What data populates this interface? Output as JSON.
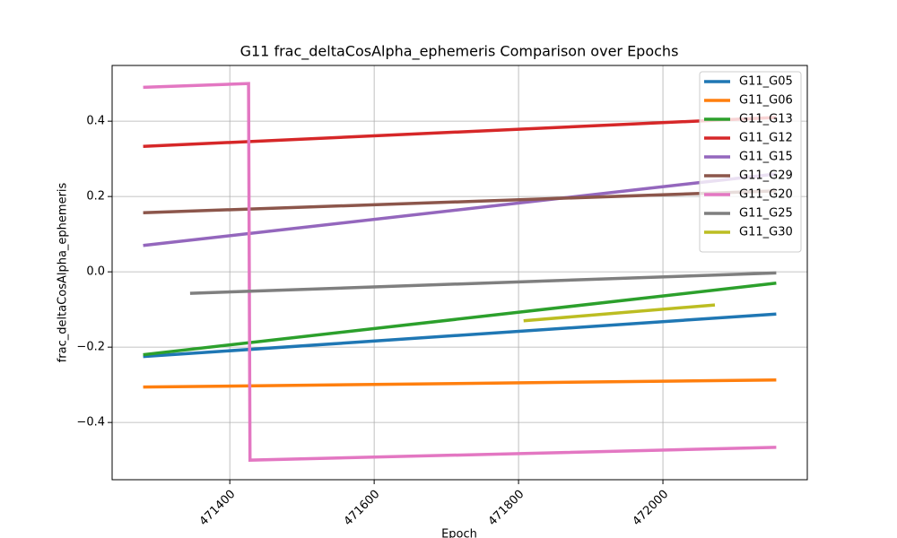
{
  "chart_data": {
    "type": "line",
    "title": "G11 frac_deltaCosAlpha_ephemeris Comparison over Epochs",
    "x_label": "Epoch",
    "y_label": "frac_deltaCosAlpha_ephemeris",
    "xlim": [
      471237,
      472200
    ],
    "ylim": [
      -0.552,
      0.548
    ],
    "xticks": [
      471400,
      471600,
      471800,
      472000
    ],
    "yticks": [
      {
        "value": -0.4,
        "label": "−0.4"
      },
      {
        "value": -0.2,
        "label": "−0.2"
      },
      {
        "value": 0,
        "label": "0.0"
      },
      0.2,
      0.4
    ],
    "grid": true,
    "legend": "upper right",
    "series": [
      {
        "name": "G11_G05",
        "color": "#1f77b4",
        "x": [
          471280,
          472157
        ],
        "values": [
          -0.225,
          -0.112
        ]
      },
      {
        "name": "G11_G06",
        "color": "#ff7f0e",
        "x": [
          471280,
          472157
        ],
        "values": [
          -0.306,
          -0.287
        ]
      },
      {
        "name": "G11_G13",
        "color": "#2ca02c",
        "x": [
          471280,
          472157
        ],
        "values": [
          -0.22,
          -0.03
        ]
      },
      {
        "name": "G11_G12",
        "color": "#d62728",
        "x": [
          471280,
          472157
        ],
        "values": [
          0.333,
          0.41
        ]
      },
      {
        "name": "G11_G15",
        "color": "#9467bd",
        "x": [
          471280,
          472157
        ],
        "values": [
          0.07,
          0.26
        ]
      },
      {
        "name": "G11_G29",
        "color": "#8c564b",
        "x": [
          471280,
          472157
        ],
        "values": [
          0.157,
          0.215
        ]
      },
      {
        "name": "G11_G20",
        "color": "#e377c2",
        "x": [
          471280,
          471426,
          471428,
          472157
        ],
        "values": [
          0.49,
          0.5,
          -0.5,
          -0.466
        ]
      },
      {
        "name": "G11_G25",
        "color": "#7f7f7f",
        "x": [
          471345,
          472157
        ],
        "values": [
          -0.057,
          -0.003
        ]
      },
      {
        "name": "G11_G30",
        "color": "#bcbd22",
        "x": [
          471807,
          472072
        ],
        "values": [
          -0.13,
          -0.088
        ]
      }
    ]
  }
}
